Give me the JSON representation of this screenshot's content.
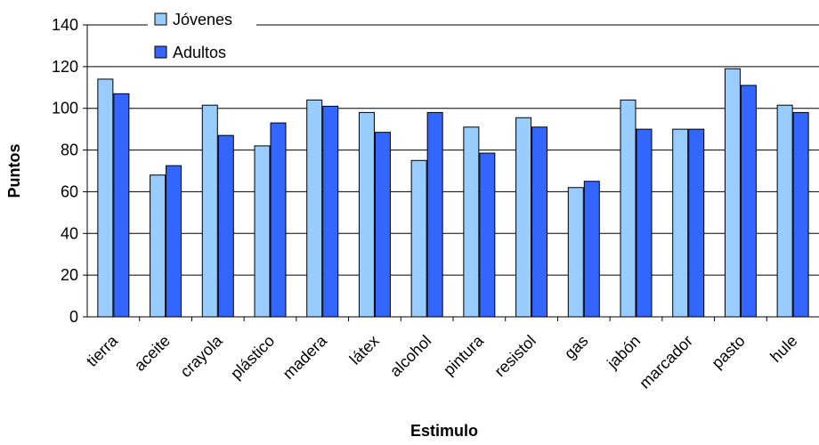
{
  "chart_data": {
    "type": "bar",
    "xlabel": "Estimulo",
    "ylabel": "Puntos",
    "ylim": [
      0,
      140
    ],
    "yticks": [
      0,
      20,
      40,
      60,
      80,
      100,
      120,
      140
    ],
    "grid": "horizontal",
    "legend_position": "top-left",
    "categories": [
      "tierra",
      "aceite",
      "crayola",
      "plástico",
      "madera",
      "látex",
      "alcohol",
      "pintura",
      "resistol",
      "gas",
      "jabón",
      "marcador",
      "pasto",
      "hule"
    ],
    "series": [
      {
        "name": "Jóvenes",
        "color": "#99CCFF",
        "values": [
          114,
          68,
          101.5,
          82,
          104,
          98,
          75,
          91,
          95.5,
          62,
          104,
          90,
          119,
          101.5
        ]
      },
      {
        "name": "Adultos",
        "color": "#3366FF",
        "values": [
          107,
          72.5,
          87,
          93,
          101,
          88.5,
          98,
          78.5,
          91,
          65,
          90,
          90,
          111,
          98
        ]
      }
    ]
  }
}
